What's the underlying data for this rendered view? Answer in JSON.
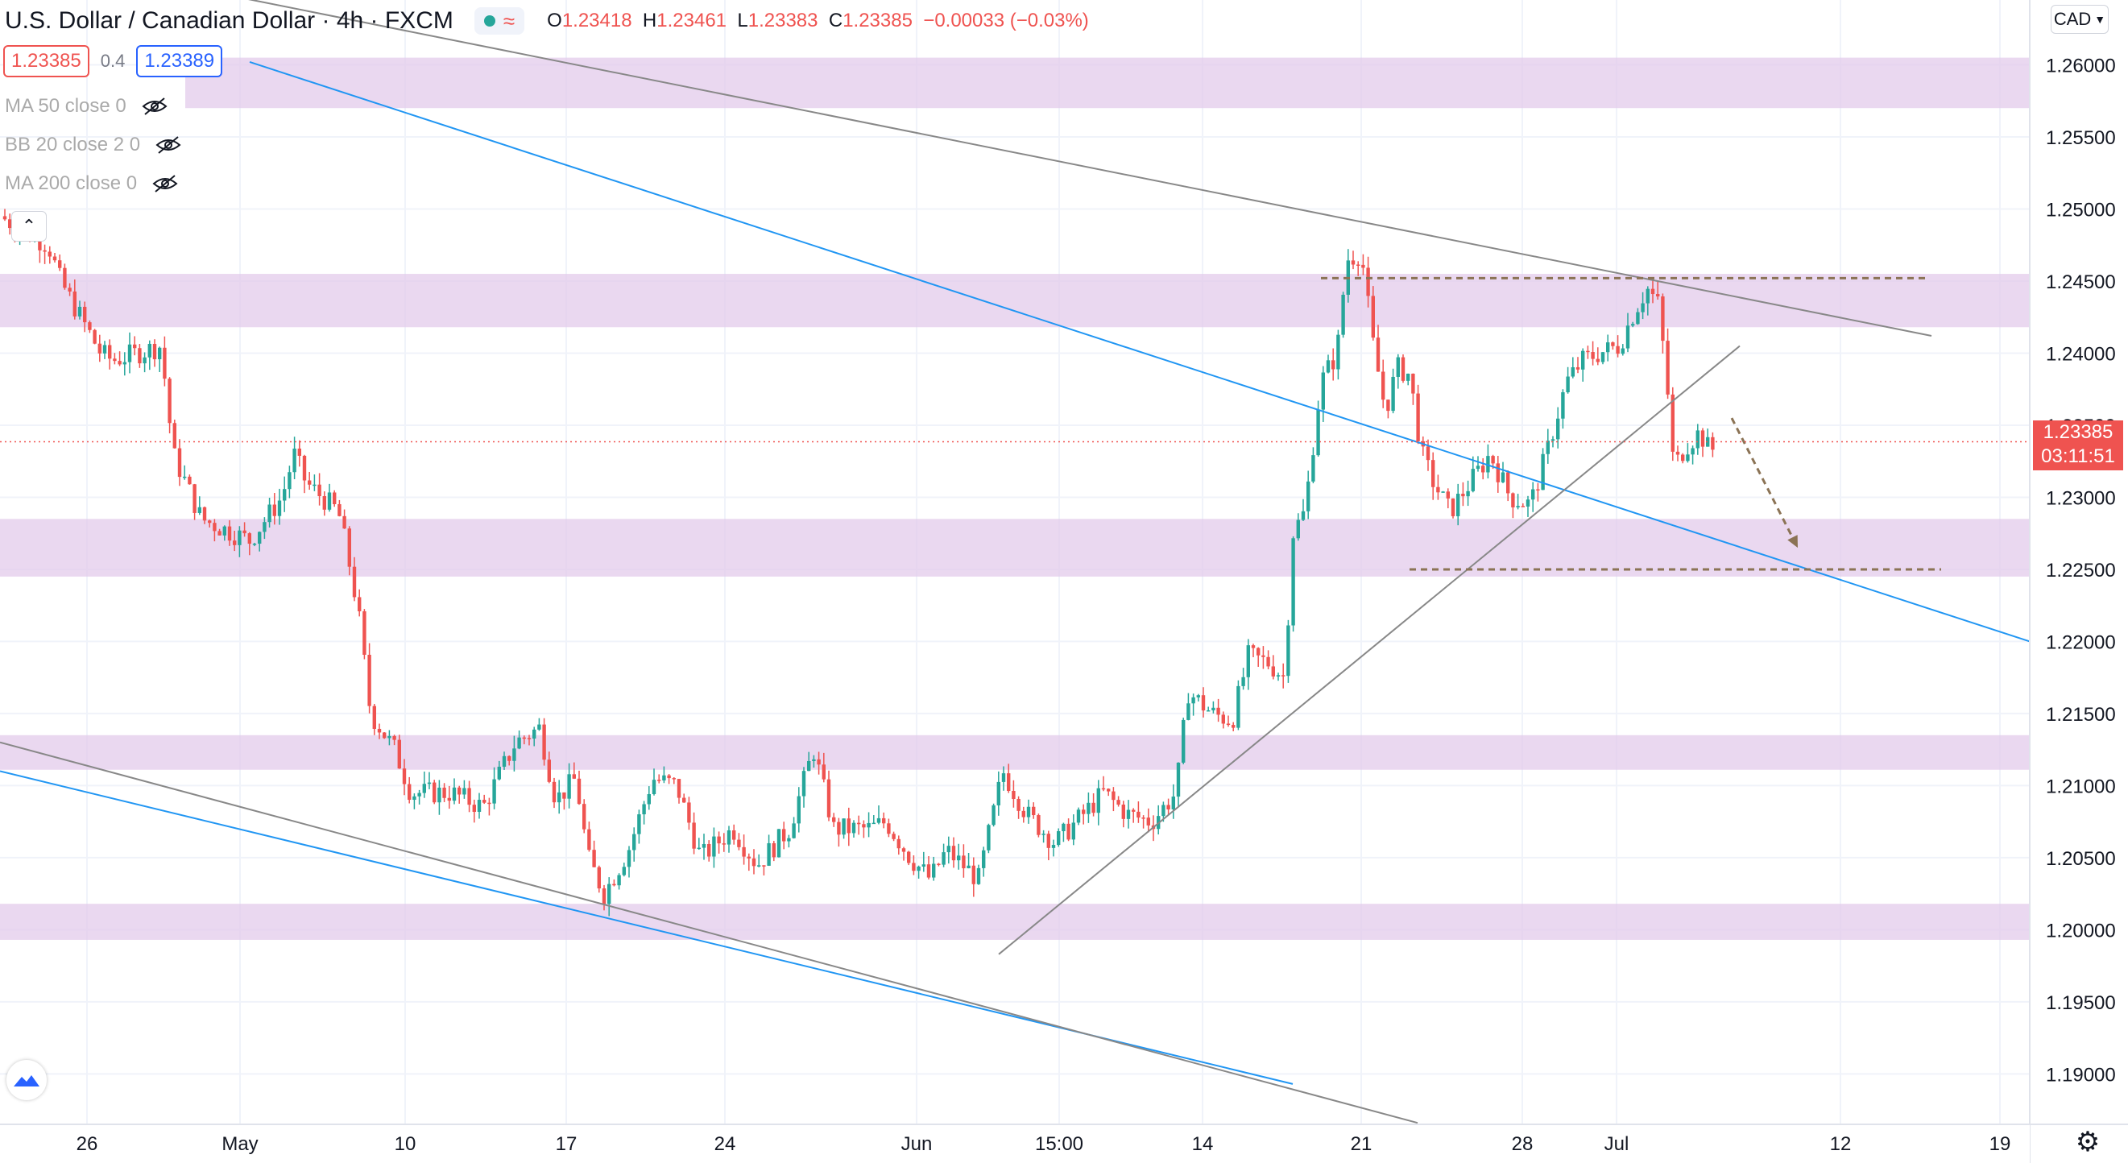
{
  "header": {
    "symbol": "U.S. Dollar / Canadian Dollar · 4h · FXCM",
    "ohlc": {
      "o_label": "O",
      "o": "1.23418",
      "h_label": "H",
      "h": "1.23461",
      "l_label": "L",
      "l": "1.23383",
      "c_label": "C",
      "c": "1.23385",
      "change": "−0.00033 (−0.03%)"
    }
  },
  "quote": {
    "bid": "1.23385",
    "spread": "0.4",
    "ask": "1.23389"
  },
  "indicators": [
    {
      "label": "MA 50 close 0"
    },
    {
      "label": "BB 20 close 2 0"
    },
    {
      "label": "MA 200 close 0"
    }
  ],
  "currency_button": "CAD",
  "price_label": {
    "price": "1.23385",
    "countdown": "03:11:51"
  },
  "icons": {
    "eye_hidden": "eye-crossed-icon",
    "collapse": "chevron-up-icon",
    "logo": "tradingview-logo-icon",
    "settings": "gear-icon",
    "dropdown": "chevron-down-icon"
  },
  "colors": {
    "up": "#26a69a",
    "down": "#ef5350",
    "zone": "#e1c7e9",
    "channel_blue": "#2196f3",
    "trendline_gray": "#888888",
    "target": "#8b7355"
  },
  "chart_data": {
    "type": "candlestick",
    "symbol": "USDCAD",
    "interval": "4h",
    "ylim": [
      1.1865,
      1.2645
    ],
    "y_ticks": [
      1.19,
      1.195,
      1.2,
      1.205,
      1.21,
      1.215,
      1.22,
      1.225,
      1.23,
      1.235,
      1.24,
      1.245,
      1.25,
      1.255,
      1.26
    ],
    "y_tick_labels": [
      "1.19000",
      "1.19500",
      "1.20000",
      "1.20500",
      "1.21000",
      "1.21500",
      "1.22000",
      "1.22500",
      "1.23000",
      "1.23500",
      "1.24000",
      "1.24500",
      "1.25000",
      "1.25500",
      "1.26000"
    ],
    "x_tick_labels": [
      "26",
      "May",
      "10",
      "17",
      "24",
      "Jun",
      "15:00",
      "14",
      "21",
      "28",
      "Jul",
      "12",
      "19"
    ],
    "x_tick_label_x": [
      108,
      298,
      503,
      703,
      900,
      1138,
      1315,
      1493,
      1690,
      1890,
      2007,
      2285,
      2483
    ],
    "price_path": [
      [
        0,
        1.2495
      ],
      [
        60,
        1.2475
      ],
      [
        75,
        1.245
      ],
      [
        125,
        1.24
      ],
      [
        140,
        1.2395
      ],
      [
        200,
        1.2405
      ],
      [
        215,
        1.233
      ],
      [
        250,
        1.2285
      ],
      [
        310,
        1.227
      ],
      [
        350,
        1.23
      ],
      [
        365,
        1.233
      ],
      [
        380,
        1.231
      ],
      [
        420,
        1.229
      ],
      [
        430,
        1.2265
      ],
      [
        445,
        1.222
      ],
      [
        460,
        1.215
      ],
      [
        490,
        1.2125
      ],
      [
        510,
        1.2095
      ],
      [
        560,
        1.2095
      ],
      [
        600,
        1.2085
      ],
      [
        640,
        1.213
      ],
      [
        670,
        1.214
      ],
      [
        690,
        1.209
      ],
      [
        715,
        1.2105
      ],
      [
        730,
        1.205
      ],
      [
        750,
        1.2025
      ],
      [
        780,
        1.2055
      ],
      [
        810,
        1.2105
      ],
      [
        840,
        1.21
      ],
      [
        870,
        1.205
      ],
      [
        910,
        1.207
      ],
      [
        940,
        1.2045
      ],
      [
        980,
        1.207
      ],
      [
        1010,
        1.2125
      ],
      [
        1035,
        1.207
      ],
      [
        1080,
        1.207
      ],
      [
        1100,
        1.2075
      ],
      [
        1130,
        1.205
      ],
      [
        1155,
        1.2035
      ],
      [
        1175,
        1.2055
      ],
      [
        1215,
        1.2035
      ],
      [
        1245,
        1.211
      ],
      [
        1275,
        1.208
      ],
      [
        1310,
        1.206
      ],
      [
        1345,
        1.208
      ],
      [
        1370,
        1.2095
      ],
      [
        1400,
        1.208
      ],
      [
        1430,
        1.2075
      ],
      [
        1460,
        1.2095
      ],
      [
        1475,
        1.2165
      ],
      [
        1505,
        1.215
      ],
      [
        1530,
        1.2145
      ],
      [
        1550,
        1.219
      ],
      [
        1575,
        1.2185
      ],
      [
        1595,
        1.2175
      ],
      [
        1605,
        1.2275
      ],
      [
        1620,
        1.229
      ],
      [
        1640,
        1.238
      ],
      [
        1660,
        1.24
      ],
      [
        1672,
        1.2465
      ],
      [
        1690,
        1.247
      ],
      [
        1705,
        1.2405
      ],
      [
        1720,
        1.236
      ],
      [
        1735,
        1.239
      ],
      [
        1750,
        1.2385
      ],
      [
        1765,
        1.233
      ],
      [
        1780,
        1.231
      ],
      [
        1800,
        1.229
      ],
      [
        1825,
        1.231
      ],
      [
        1850,
        1.233
      ],
      [
        1875,
        1.23
      ],
      [
        1900,
        1.2295
      ],
      [
        1920,
        1.233
      ],
      [
        1945,
        1.238
      ],
      [
        1965,
        1.2395
      ],
      [
        1985,
        1.24
      ],
      [
        2010,
        1.2405
      ],
      [
        2030,
        1.243
      ],
      [
        2045,
        1.2445
      ],
      [
        2058,
        1.2435
      ],
      [
        2068,
        1.239
      ],
      [
        2078,
        1.232
      ],
      [
        2092,
        1.2335
      ],
      [
        2110,
        1.2345
      ],
      [
        2125,
        1.233
      ],
      [
        2130,
        1.2342
      ]
    ],
    "zones": [
      {
        "from": 1.257,
        "to": 1.2605
      },
      {
        "from": 1.2418,
        "to": 1.2455
      },
      {
        "from": 1.2245,
        "to": 1.2285
      },
      {
        "from": 1.2111,
        "to": 1.2135
      },
      {
        "from": 1.1993,
        "to": 1.2018
      }
    ],
    "trendlines": [
      {
        "kind": "channel-upper",
        "color": "#2196f3",
        "from": [
          310,
          1.2602
        ],
        "to": [
          2520,
          1.22
        ]
      },
      {
        "kind": "channel-lower",
        "color": "#2196f3",
        "from": [
          0,
          1.211
        ],
        "to": [
          1605,
          1.1893
        ]
      },
      {
        "kind": "gray-upper",
        "color": "#888888",
        "from": [
          0,
          1.268
        ],
        "to": [
          2398,
          1.2412
        ]
      },
      {
        "kind": "gray-lower",
        "color": "#888888",
        "from": [
          0,
          1.213
        ],
        "to": [
          1760,
          1.1866
        ]
      },
      {
        "kind": "gray-rising",
        "color": "#888888",
        "from": [
          1240,
          1.1983
        ],
        "to": [
          2160,
          1.2405
        ]
      }
    ],
    "levels": [
      {
        "price": 1.2452,
        "x_from": 1640,
        "x_to": 2395,
        "style": "dashed"
      },
      {
        "price": 1.225,
        "x_from": 1750,
        "x_to": 2410,
        "style": "dashed"
      }
    ],
    "projection_arrow": {
      "from": [
        2150,
        1.2355
      ],
      "to": [
        2232,
        1.2265
      ]
    },
    "current_price": 1.23385
  }
}
